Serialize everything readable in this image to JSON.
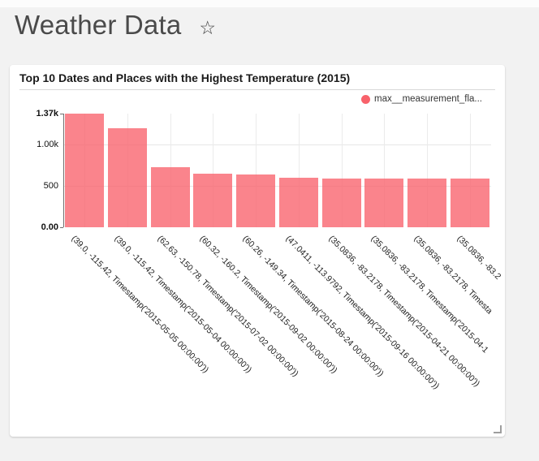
{
  "header": {
    "title": "Weather Data",
    "favorite_icon": "star-outline",
    "favorite_glyph": "☆"
  },
  "chart_data": {
    "type": "bar",
    "title": "Top 10 Dates and Places with the Highest Temperature (2015)",
    "legend": [
      {
        "label": "max__measurement_fla...",
        "color": "#f8626b",
        "position": "top-right"
      }
    ],
    "categories": [
      "(39.0, -115.42, Timestamp('2015-05-05 00:00:00'))",
      "(39.0, -115.42, Timestamp('2015-05-04 00:00:00'))",
      "(62.63, -150.78, Timestamp('2015-07-02 00:00:00'))",
      "(60.32, -160.2, Timestamp('2015-09-02 00:00:00'))",
      "(60.26, -149.34, Timestamp('2015-08-24 00:00:00'))",
      "(47.0411, -113.9792, Timestamp('2015-09-16 00:00:00'))",
      "(35.0836, -83.2178, Timestamp('2015-04-21 00:00:00'))",
      "(35.0836, -83.2178, Timestamp('2015-04-1",
      "(35.0836, -83.2178, Timesta",
      "(35.0836, -83.2"
    ],
    "values": [
      1370,
      1190,
      725,
      645,
      635,
      600,
      590,
      590,
      590,
      585
    ],
    "ylim": [
      0,
      1370
    ],
    "yticks": [
      {
        "label": "1.37k",
        "value": 1370,
        "bold": true
      },
      {
        "label": "1.00k",
        "value": 1000,
        "bold": false
      },
      {
        "label": "500",
        "value": 500,
        "bold": false
      },
      {
        "label": "0.00",
        "value": 0,
        "bold": true
      }
    ],
    "gridlines_y": [
      500,
      1000
    ],
    "grid": true,
    "xlabel": "",
    "ylabel": "",
    "x_tick_rotation_deg": 45,
    "bar_color": "#f8626b",
    "bar_opacity": 0.78,
    "axis_color": "#6e6e6e",
    "gridline_color": "#e7e7e7"
  }
}
